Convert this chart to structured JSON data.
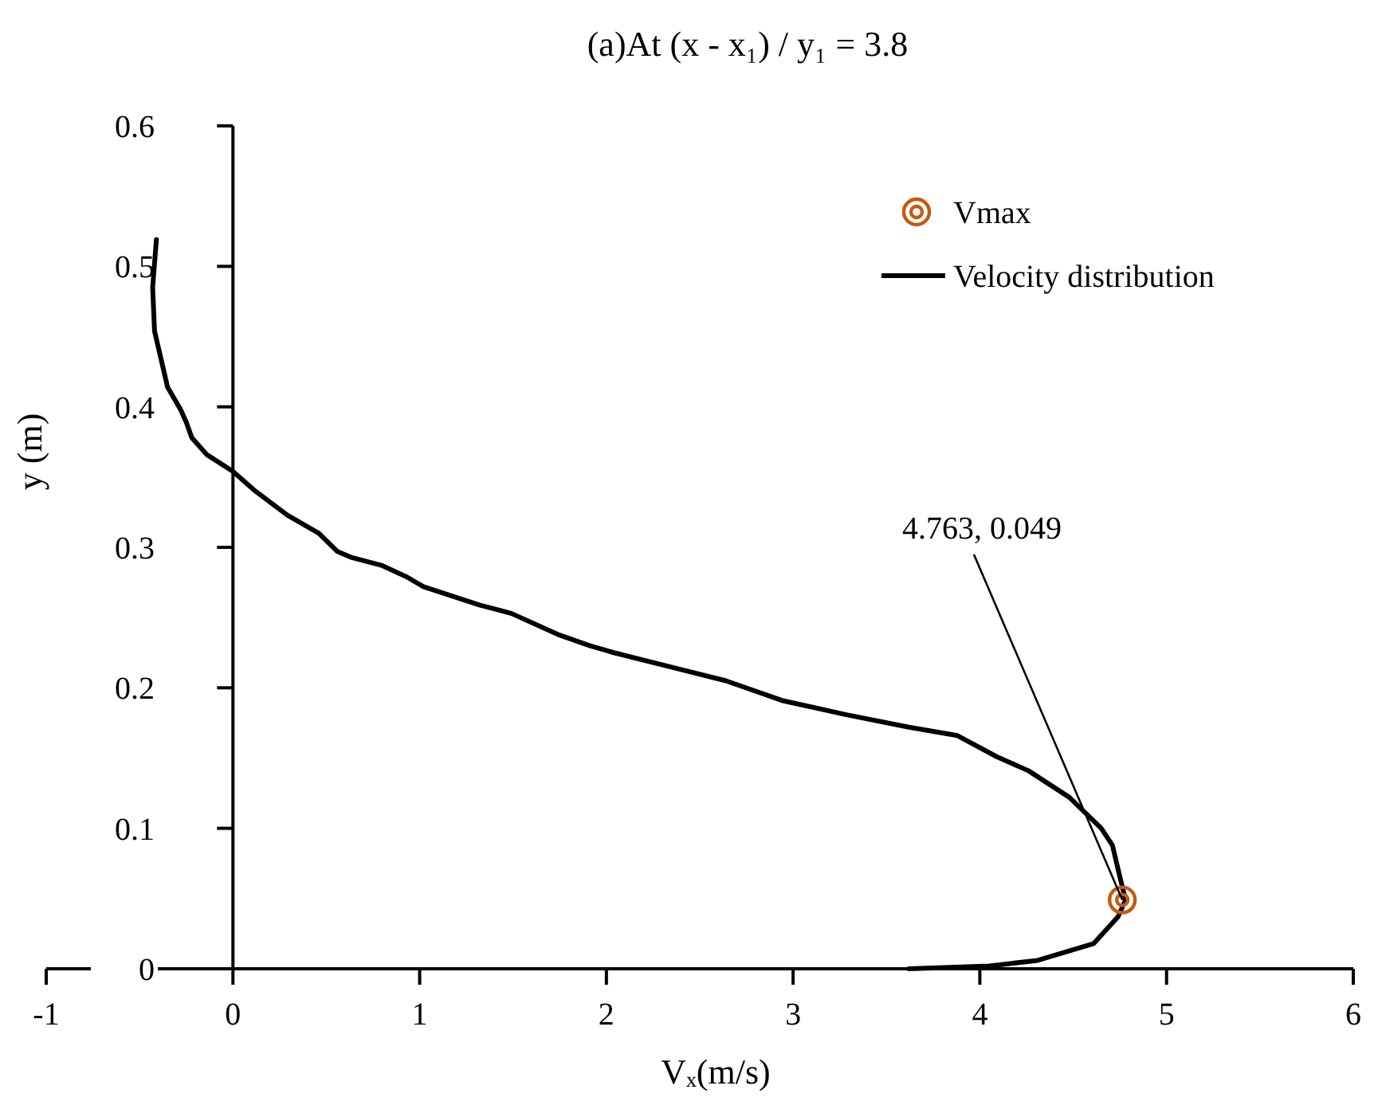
{
  "chart_data": {
    "type": "line",
    "title": "(a)At (x - x₁) / y₁ = 3.8",
    "xlabel": "Vₓ(m/s)",
    "ylabel": "y (m)",
    "xlim": [
      -1,
      6
    ],
    "xticks": [
      -1,
      0,
      1,
      2,
      3,
      4,
      5,
      6
    ],
    "ylim": [
      0,
      0.6
    ],
    "yticks": [
      0,
      0.1,
      0.2,
      0.3,
      0.4,
      0.5,
      0.6
    ],
    "grid": false,
    "legend": "top right",
    "annotations": [
      {
        "text": "4.763, 0.049",
        "x": 4.763,
        "y": 0.049
      }
    ],
    "series": [
      {
        "name": "Vmax",
        "type": "scatter",
        "marker": "circle",
        "color": "#c55a11",
        "x": [
          4.763
        ],
        "values": [
          0.049
        ]
      },
      {
        "name": "Velocity distribution",
        "marker": "none",
        "line_style": "solid",
        "color": "#000000",
        "x": [
          3.62,
          4.05,
          4.31,
          4.61,
          4.74,
          4.78,
          4.74,
          4.71,
          4.65,
          4.48,
          4.26,
          4.09,
          3.88,
          3.62,
          3.28,
          2.94,
          2.64,
          2.34,
          2.04,
          1.91,
          1.74,
          1.49,
          1.32,
          1.02,
          0.93,
          0.8,
          0.63,
          0.56,
          0.46,
          0.29,
          0.12,
          0,
          -0.14,
          -0.22,
          -0.25,
          -0.28,
          -0.35,
          -0.42,
          -0.43,
          -0.41
        ],
        "values": [
          0,
          0.002,
          0.006,
          0.018,
          0.037,
          0.049,
          0.071,
          0.088,
          0.1,
          0.122,
          0.141,
          0.151,
          0.166,
          0.172,
          0.181,
          0.191,
          0.205,
          0.215,
          0.225,
          0.23,
          0.238,
          0.253,
          0.259,
          0.272,
          0.279,
          0.287,
          0.293,
          0.297,
          0.31,
          0.323,
          0.34,
          0.354,
          0.366,
          0.378,
          0.389,
          0.398,
          0.414,
          0.454,
          0.485,
          0.519
        ]
      }
    ]
  }
}
